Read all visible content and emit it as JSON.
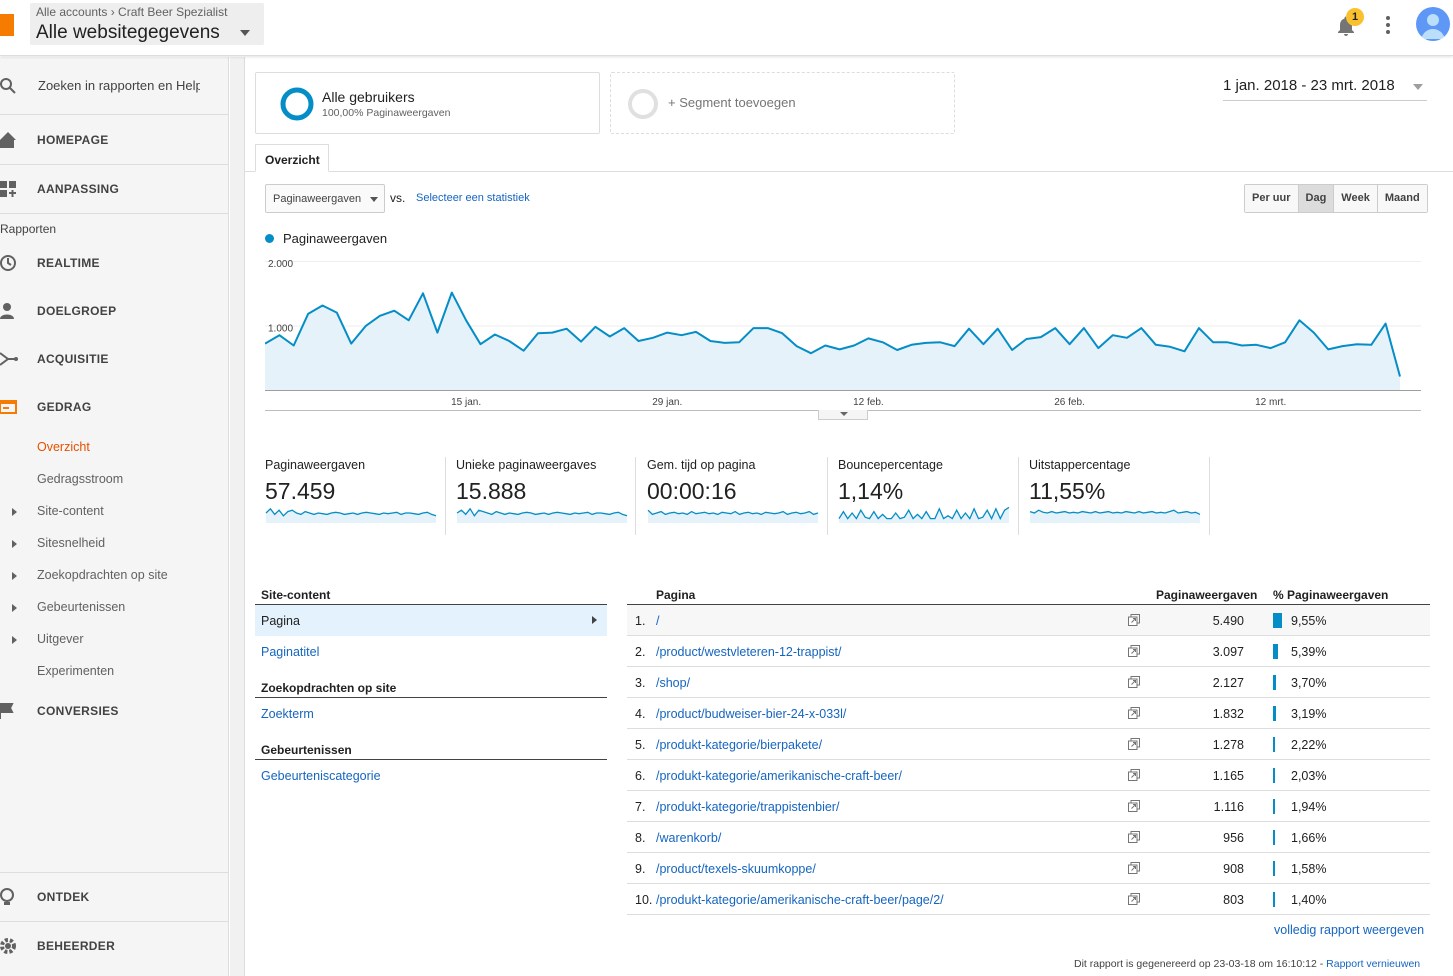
{
  "topbar": {
    "breadcrumb_root": "Alle accounts",
    "breadcrumb_account": "Craft Beer Spezialist",
    "property_view": "Alle websitegegevens",
    "notification_count": "1"
  },
  "sidebar": {
    "search_placeholder": "Zoeken in rapporten en Help",
    "home": "HOMEPAGE",
    "customization": "AANPASSING",
    "reports_section": "Rapporten",
    "realtime": "REALTIME",
    "audience": "DOELGROEP",
    "acquisition": "ACQUISITIE",
    "behavior": "GEDRAG",
    "behavior_items": [
      "Overzicht",
      "Gedragsstroom",
      "Site-content",
      "Sitesnelheid",
      "Zoekopdrachten op site",
      "Gebeurtenissen",
      "Uitgever",
      "Experimenten"
    ],
    "conversions": "CONVERSIES",
    "discover": "ONTDEK",
    "admin": "BEHEERDER",
    "accent_color": "#f57c00"
  },
  "segments": {
    "active_title": "Alle gebruikers",
    "active_sub": "100,00% Paginaweergaven",
    "add_label": "+ Segment toevoegen"
  },
  "date_range": "1 jan. 2018 - 23 mrt. 2018",
  "tabs": {
    "overview": "Overzicht"
  },
  "controls": {
    "metric": "Paginaweergaven",
    "vs": "vs.",
    "select_stat": "Selecteer een statistiek",
    "granularity": [
      "Per uur",
      "Dag",
      "Week",
      "Maand"
    ],
    "granularity_selected": "Dag"
  },
  "chart_data": {
    "type": "area",
    "series": [
      {
        "name": "Paginaweergaven",
        "color": "#058dc7",
        "values": [
          720,
          850,
          690,
          1180,
          1310,
          1200,
          720,
          990,
          1150,
          1230,
          1080,
          1500,
          890,
          1510,
          1080,
          710,
          860,
          760,
          610,
          880,
          890,
          950,
          750,
          980,
          830,
          960,
          760,
          810,
          890,
          850,
          900,
          760,
          730,
          740,
          960,
          960,
          880,
          680,
          570,
          690,
          630,
          690,
          800,
          740,
          620,
          700,
          730,
          740,
          680,
          950,
          710,
          950,
          620,
          790,
          820,
          960,
          710,
          960,
          650,
          850,
          810,
          960,
          700,
          670,
          600,
          960,
          740,
          740,
          690,
          700,
          650,
          740,
          1080,
          890,
          630,
          680,
          710,
          700,
          1030,
          210
        ]
      }
    ],
    "yticks": [
      "2.000",
      "1.000"
    ],
    "ylim": [
      0,
      2000
    ],
    "xticks": [
      "15 jan.",
      "29 jan.",
      "12 feb.",
      "26 feb.",
      "12 mrt."
    ]
  },
  "kpis": [
    {
      "label": "Paginaweergaven",
      "value": "57.459"
    },
    {
      "label": "Unieke paginaweergaves",
      "value": "15.888"
    },
    {
      "label": "Gem. tijd op pagina",
      "value": "00:00:16"
    },
    {
      "label": "Bouncepercentage",
      "value": "1,14%"
    },
    {
      "label": "Uitstappercentage",
      "value": "11,55%"
    }
  ],
  "site_content": {
    "group1_title": "Site-content",
    "group1_items": [
      "Pagina",
      "Paginatitel"
    ],
    "group2_title": "Zoekopdrachten op site",
    "group2_items": [
      "Zoekterm"
    ],
    "group3_title": "Gebeurtenissen",
    "group3_items": [
      "Gebeurteniscategorie"
    ]
  },
  "table": {
    "headers": [
      "Pagina",
      "Paginaweergaven",
      "% Paginaweergaven"
    ],
    "rows": [
      {
        "rank": "1.",
        "page": "/",
        "views": "5.490",
        "pct": "9,55%",
        "share": 9.55
      },
      {
        "rank": "2.",
        "page": "/product/westvleteren-12-trappist/",
        "views": "3.097",
        "pct": "5,39%",
        "share": 5.39
      },
      {
        "rank": "3.",
        "page": "/shop/",
        "views": "2.127",
        "pct": "3,70%",
        "share": 3.7
      },
      {
        "rank": "4.",
        "page": "/product/budweiser-bier-24-x-033l/",
        "views": "1.832",
        "pct": "3,19%",
        "share": 3.19
      },
      {
        "rank": "5.",
        "page": "/produkt-kategorie/bierpakete/",
        "views": "1.278",
        "pct": "2,22%",
        "share": 2.22
      },
      {
        "rank": "6.",
        "page": "/produkt-kategorie/amerikanische-craft-beer/",
        "views": "1.165",
        "pct": "2,03%",
        "share": 2.03
      },
      {
        "rank": "7.",
        "page": "/produkt-kategorie/trappistenbier/",
        "views": "1.116",
        "pct": "1,94%",
        "share": 1.94
      },
      {
        "rank": "8.",
        "page": "/warenkorb/",
        "views": "956",
        "pct": "1,66%",
        "share": 1.66
      },
      {
        "rank": "9.",
        "page": "/product/texels-skuumkoppe/",
        "views": "908",
        "pct": "1,58%",
        "share": 1.58
      },
      {
        "rank": "10.",
        "page": "/produkt-kategorie/amerikanische-craft-beer/page/2/",
        "views": "803",
        "pct": "1,40%",
        "share": 1.4
      }
    ],
    "full_report": "volledig rapport weergeven"
  },
  "footer": {
    "generated": "Dit rapport is gegenereerd op 23-03-18 om 16:10:12 - ",
    "refresh": "Rapport vernieuwen"
  }
}
